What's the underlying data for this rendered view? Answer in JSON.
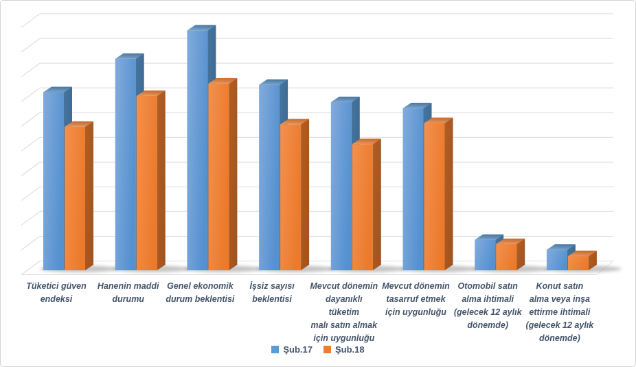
{
  "chart_data": {
    "type": "bar",
    "style": "3d-clustered-column",
    "title": "",
    "xlabel": "",
    "ylabel": "",
    "ylim": [
      0,
      100
    ],
    "gridline_step": 10,
    "grid": true,
    "y_axis_labels_visible": false,
    "legend_position": "bottom",
    "categories": [
      "Tüketici güven endeksi",
      "Hanenin maddi durumu",
      "Genel ekonomik durum beklentisi",
      "İşsiz sayısı beklentisi",
      "Mevcut dönemin dayanıklı tüketim malı satın almak için uygunluğu",
      "Mevcut dönemin tasarruf etmek için uygunluğu",
      "Otomobil satın alma ihtimali (gelecek 12 aylık dönemde)",
      "Konut satın alma veya inşa ettirme ihtimali (gelecek 12 aylık dönemde)"
    ],
    "category_label_lines": [
      [
        "Tüketici güven",
        "endeksi"
      ],
      [
        "Hanenin maddi",
        "durumu"
      ],
      [
        "Genel ekonomik",
        "durum beklentisi"
      ],
      [
        "İşsiz sayısı",
        "beklentisi"
      ],
      [
        "Mevcut dönemin",
        "dayanıklı",
        "tüketim",
        "malı satın almak",
        "için uygunluğu"
      ],
      [
        "Mevcut dönemin",
        "tasarruf etmek",
        "için uygunluğu"
      ],
      [
        "Otomobil satın",
        "alma ihtimali",
        "(gelecek 12 aylık",
        "dönemde)"
      ],
      [
        "Konut satın",
        "alma veya inşa",
        "ettirme ihtimali",
        "(gelecek 12 aylık",
        "dönemde)"
      ]
    ],
    "series": [
      {
        "name": "Şub.17",
        "color": "#5B9BD5",
        "values": [
          72,
          85.5,
          97,
          75,
          68,
          65.5,
          12.3,
          8.3
        ],
        "faces": {
          "front": [
            "#82ABDE",
            "#5591CF"
          ],
          "side": [
            "#45759F",
            "#3A648C"
          ],
          "top": [
            "#7FA6C9",
            "#4A7AA8"
          ]
        }
      },
      {
        "name": "Şub.18",
        "color": "#ED7D31",
        "values": [
          58,
          70.5,
          75.5,
          59,
          51,
          59.5,
          10.6,
          5.7
        ],
        "faces": {
          "front": [
            "#F2914F",
            "#EC7A2B"
          ],
          "side": [
            "#B05E24",
            "#9E531F"
          ],
          "top": [
            "#E59A64",
            "#C96C2E"
          ]
        }
      }
    ]
  },
  "colors": {
    "gridline": "#D9D9D9",
    "floor_edge": "#DBDBDB",
    "shadow": "#8C8C8C",
    "label_text": "#44546A",
    "chart_border": "#D3D3D3",
    "background": "#FFFFFF"
  }
}
